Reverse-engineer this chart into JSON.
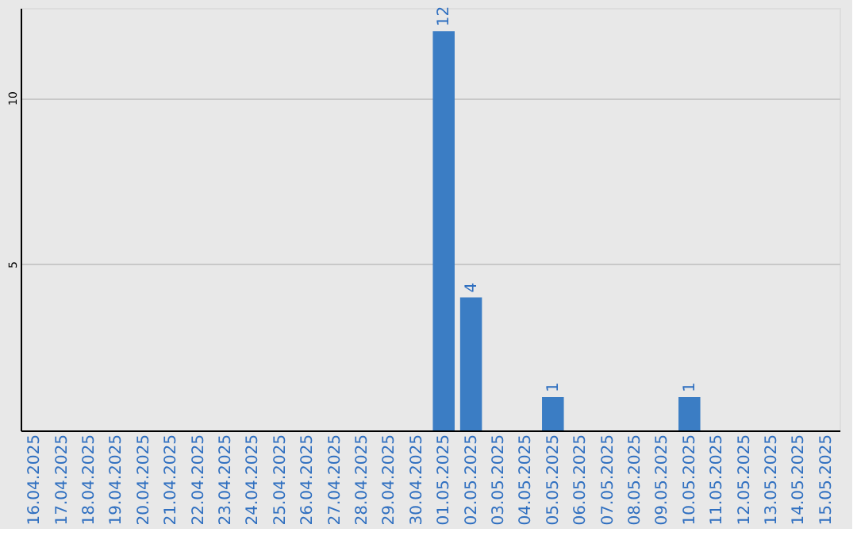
{
  "chart_data": {
    "type": "bar",
    "categories": [
      "16.04.2025",
      "17.04.2025",
      "18.04.2025",
      "19.04.2025",
      "20.04.2025",
      "21.04.2025",
      "22.04.2025",
      "23.04.2025",
      "24.04.2025",
      "25.04.2025",
      "26.04.2025",
      "27.04.2025",
      "28.04.2025",
      "29.04.2025",
      "30.04.2025",
      "01.05.2025",
      "02.05.2025",
      "03.05.2025",
      "04.05.2025",
      "05.05.2025",
      "06.05.2025",
      "07.05.2025",
      "08.05.2025",
      "09.05.2025",
      "10.05.2025",
      "11.05.2025",
      "12.05.2025",
      "13.05.2025",
      "14.05.2025",
      "15.05.2025"
    ],
    "values": [
      0,
      0,
      0,
      0,
      0,
      0,
      0,
      0,
      0,
      0,
      0,
      0,
      0,
      0,
      0,
      12,
      4,
      0,
      0,
      1,
      0,
      0,
      0,
      0,
      1,
      0,
      0,
      0,
      0,
      0
    ],
    "value_labels": [
      null,
      null,
      null,
      null,
      null,
      null,
      null,
      null,
      null,
      null,
      null,
      null,
      null,
      null,
      null,
      "12",
      "4",
      null,
      null,
      "1",
      null,
      null,
      null,
      null,
      "1",
      null,
      null,
      null,
      null,
      null
    ],
    "color": "#3b7dc4",
    "ylim": [
      0,
      12.7
    ],
    "yticks": [
      5,
      10
    ],
    "grid": "y"
  }
}
